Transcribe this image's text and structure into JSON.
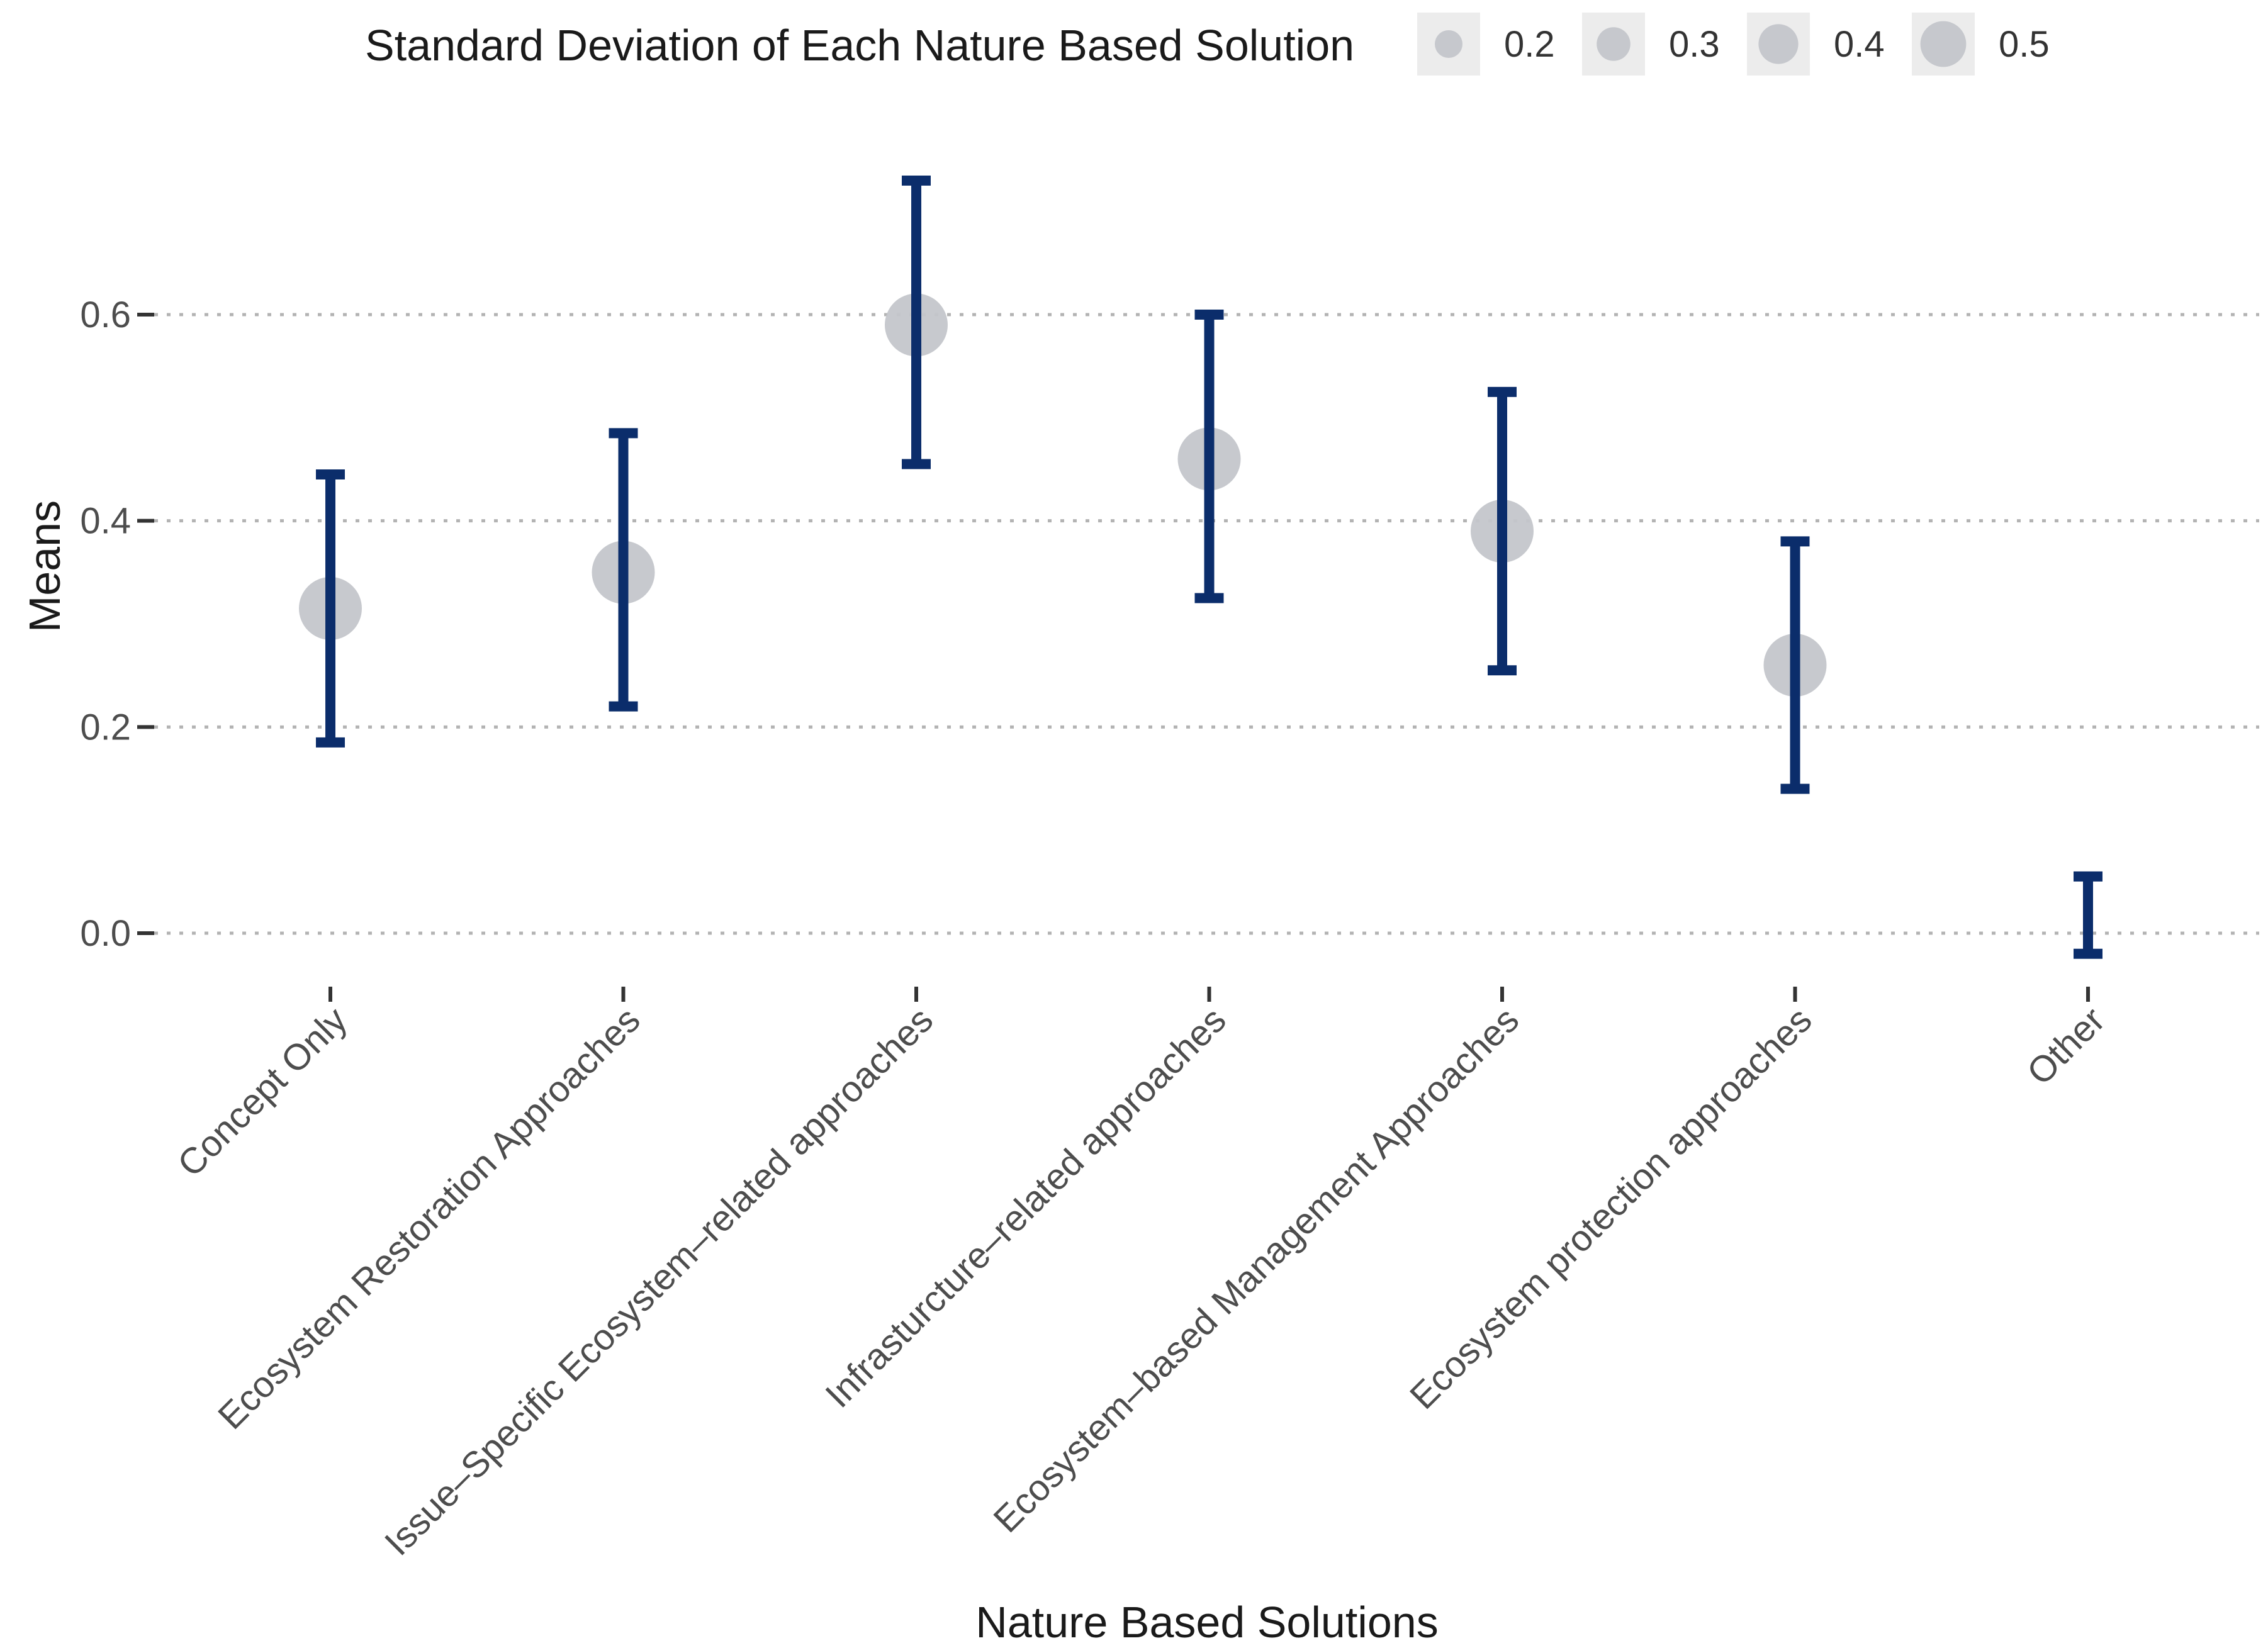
{
  "chart_data": {
    "type": "scatter",
    "subtype": "mean-with-error-bars",
    "title": "",
    "xlabel": "Nature Based Solutions",
    "ylabel": "Means",
    "ylim": [
      -0.055,
      0.74
    ],
    "yticks": [
      0.0,
      0.2,
      0.4,
      0.6
    ],
    "ytick_labels": [
      "0.0",
      "0.2",
      "0.4",
      "0.6"
    ],
    "grid": "horizontal dotted",
    "legend": {
      "title": "Standard Deviation of Each Nature Based Solution",
      "placement": "top",
      "entries": [
        {
          "label": "0.2",
          "value": 0.2
        },
        {
          "label": "0.3",
          "value": 0.3
        },
        {
          "label": "0.4",
          "value": 0.4
        },
        {
          "label": "0.5",
          "value": 0.5
        }
      ]
    },
    "categories": [
      "Concept Only",
      "Ecosystem Restoration Approaches",
      "Issue–Specific Ecosystem–related approaches",
      "Infrasturcture–related approaches",
      "Ecosystem–based Management Approaches",
      "Ecosystem protection approaches",
      "Other"
    ],
    "series": [
      {
        "name": "Means",
        "values": [
          0.315,
          0.35,
          0.59,
          0.46,
          0.39,
          0.26,
          null
        ],
        "sd": [
          0.45,
          0.45,
          0.45,
          0.45,
          0.45,
          0.45,
          null
        ],
        "lower": [
          0.185,
          0.22,
          0.455,
          0.325,
          0.255,
          0.14,
          -0.02
        ],
        "upper": [
          0.445,
          0.485,
          0.73,
          0.6,
          0.525,
          0.38,
          0.055
        ]
      }
    ]
  },
  "colors": {
    "error_bar": "#0b2d6b",
    "point": "#c4c6cb",
    "grid": "#b3b3b3",
    "legend_key_bg": "#ececec"
  }
}
